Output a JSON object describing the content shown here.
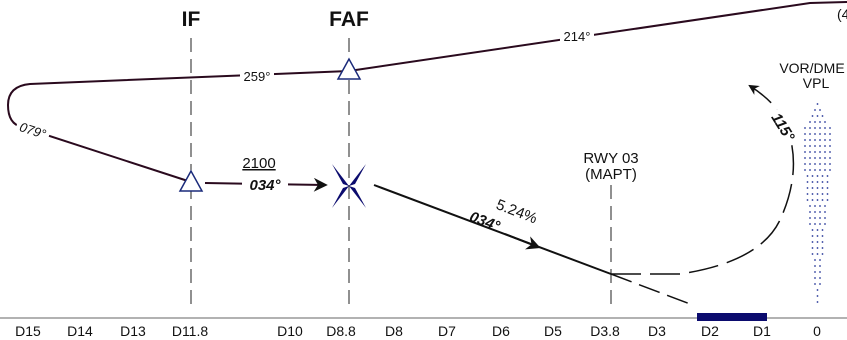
{
  "headers": {
    "if_label": "IF",
    "faf_label": "FAF"
  },
  "track": {
    "top_right_bearing": "214°",
    "top_left_bearing": "259°",
    "turn_bearing": "079°",
    "edge_fragment": "(4"
  },
  "approach": {
    "altitude": "2100",
    "inbound_course": "034°",
    "final_course": "034°",
    "glide_slope": "5.24%"
  },
  "runway": {
    "name": "RWY 03",
    "mapt": "(MAPT)"
  },
  "vor": {
    "type": "VOR/DME",
    "ident": "VPL"
  },
  "missed_approach": {
    "bearing": "115°"
  },
  "distance_scale": [
    {
      "id": "d15",
      "label": "D15"
    },
    {
      "id": "d14",
      "label": "D14"
    },
    {
      "id": "d13",
      "label": "D13"
    },
    {
      "id": "d11-8",
      "label": "D11.8"
    },
    {
      "id": "d10",
      "label": "D10"
    },
    {
      "id": "d8-8",
      "label": "D8.8"
    },
    {
      "id": "d8",
      "label": "D8"
    },
    {
      "id": "d7",
      "label": "D7"
    },
    {
      "id": "d6",
      "label": "D6"
    },
    {
      "id": "d5",
      "label": "D5"
    },
    {
      "id": "d3-8",
      "label": "D3.8"
    },
    {
      "id": "d3",
      "label": "D3"
    },
    {
      "id": "d2",
      "label": "D2"
    },
    {
      "id": "d1",
      "label": "D1"
    },
    {
      "id": "d0",
      "label": "0"
    }
  ],
  "colors": {
    "track": "#2a0a1e",
    "fix_symbol": "#1a2a7a",
    "runway_bar": "#0b0b6e",
    "vor_dots": "#2a3a9a",
    "text": "#111111"
  }
}
